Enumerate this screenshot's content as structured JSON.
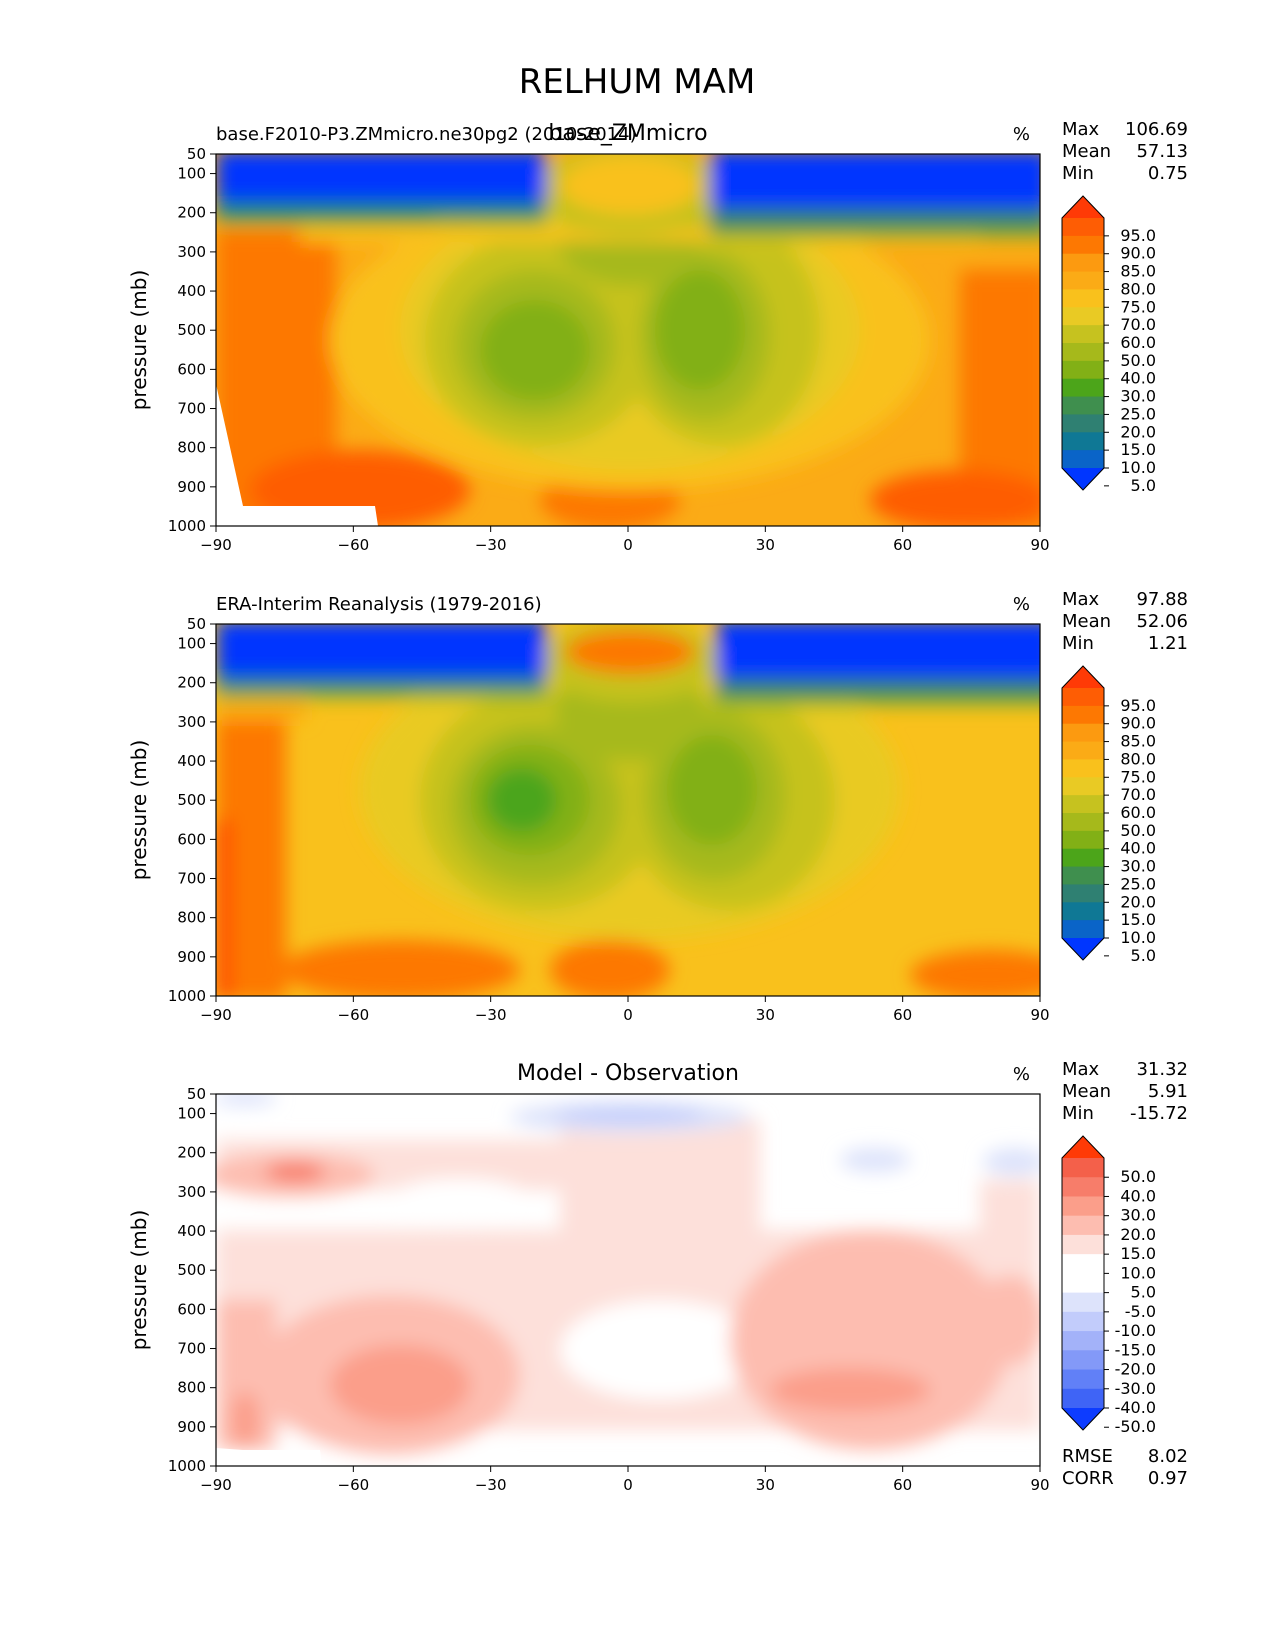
{
  "figure_title": "RELHUM MAM",
  "chart_data": [
    {
      "type": "contour",
      "left_title": "base.F2010-P3.ZMmicro.ne30pg2 (2010-2014)",
      "center_title": "base_ZMmicro",
      "units": "%",
      "ylabel": "pressure (mb)",
      "xlim": [
        -90,
        90
      ],
      "ylim": [
        1000,
        50
      ],
      "x_ticks": [
        "−90",
        "−60",
        "−30",
        "0",
        "30",
        "60",
        "90"
      ],
      "y_ticks": [
        "50",
        "100",
        "200",
        "300",
        "400",
        "500",
        "600",
        "700",
        "800",
        "900",
        "1000"
      ],
      "stats": [
        {
          "label": "Max",
          "value": "106.69"
        },
        {
          "label": "Mean",
          "value": "57.13"
        },
        {
          "label": "Min",
          "value": "0.75"
        }
      ],
      "colorbar_levels": [
        "95.0",
        "90.0",
        "85.0",
        "80.0",
        "75.0",
        "70.0",
        "60.0",
        "50.0",
        "40.0",
        "30.0",
        "25.0",
        "20.0",
        "15.0",
        "10.0",
        "5.0"
      ],
      "colorbar_colors": [
        "#ff3a06",
        "#fe5d04",
        "#fd7802",
        "#fc9a10",
        "#fbab16",
        "#f9c11c",
        "#e9ca24",
        "#c6c21f",
        "#a6b91b",
        "#82b016",
        "#4ca51a",
        "#3f8f4e",
        "#2f8072",
        "#0f7895",
        "#0a64c8",
        "#0036ff"
      ]
    },
    {
      "type": "contour",
      "left_title": "ERA-Interim Reanalysis (1979-2016)",
      "center_title": "",
      "units": "%",
      "ylabel": "pressure (mb)",
      "xlim": [
        -90,
        90
      ],
      "ylim": [
        1000,
        50
      ],
      "x_ticks": [
        "−90",
        "−60",
        "−30",
        "0",
        "30",
        "60",
        "90"
      ],
      "y_ticks": [
        "50",
        "100",
        "200",
        "300",
        "400",
        "500",
        "600",
        "700",
        "800",
        "900",
        "1000"
      ],
      "stats": [
        {
          "label": "Max",
          "value": "97.88"
        },
        {
          "label": "Mean",
          "value": "52.06"
        },
        {
          "label": "Min",
          "value": "1.21"
        }
      ],
      "colorbar_levels": [
        "95.0",
        "90.0",
        "85.0",
        "80.0",
        "75.0",
        "70.0",
        "60.0",
        "50.0",
        "40.0",
        "30.0",
        "25.0",
        "20.0",
        "15.0",
        "10.0",
        "5.0"
      ],
      "colorbar_colors": [
        "#ff3a06",
        "#fe5d04",
        "#fd7802",
        "#fc9a10",
        "#fbab16",
        "#f9c11c",
        "#e9ca24",
        "#c6c21f",
        "#a6b91b",
        "#82b016",
        "#4ca51a",
        "#3f8f4e",
        "#2f8072",
        "#0f7895",
        "#0a64c8",
        "#0036ff"
      ]
    },
    {
      "type": "contour",
      "left_title": "",
      "center_title": "Model - Observation",
      "units": "%",
      "ylabel": "pressure (mb)",
      "xlim": [
        -90,
        90
      ],
      "ylim": [
        1000,
        50
      ],
      "x_ticks": [
        "−90",
        "−60",
        "−30",
        "0",
        "30",
        "60",
        "90"
      ],
      "y_ticks": [
        "50",
        "100",
        "200",
        "300",
        "400",
        "500",
        "600",
        "700",
        "800",
        "900",
        "1000"
      ],
      "stats": [
        {
          "label": "Max",
          "value": "31.32"
        },
        {
          "label": "Mean",
          "value": "5.91"
        },
        {
          "label": "Min",
          "value": "-15.72"
        }
      ],
      "extra_stats": [
        {
          "label": "RMSE",
          "value": "8.02"
        },
        {
          "label": "CORR",
          "value": "0.97"
        }
      ],
      "colorbar_levels": [
        "50.0",
        "40.0",
        "30.0",
        "20.0",
        "15.0",
        "10.0",
        "5.0",
        "-5.0",
        "-10.0",
        "-15.0",
        "-20.0",
        "-30.0",
        "-40.0",
        "-50.0"
      ],
      "colorbar_colors": [
        "#ff3a06",
        "#f4604a",
        "#f77d6a",
        "#fb9e8a",
        "#fdbdb0",
        "#fde0da",
        "#ffffff",
        "#ffffff",
        "#dde3fb",
        "#c2ccfb",
        "#a3b2f9",
        "#8399f8",
        "#6180f7",
        "#3f64f6",
        "#0d3cff"
      ]
    }
  ]
}
